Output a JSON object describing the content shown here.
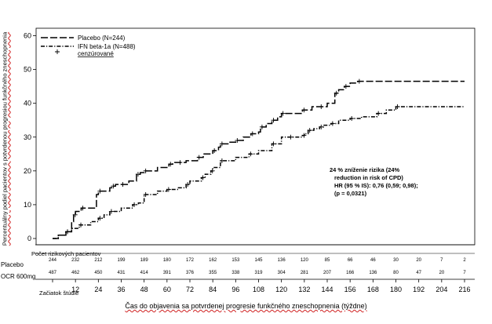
{
  "chart_data": {
    "type": "line",
    "subtype": "kaplan-meier step curves",
    "ylabel": "Percentuálny podiel pacientov s potvrdenou progresiou funkčného zneschopnenia",
    "xlabel": "Čas do objavenia sa potvrdenej progresie funkčného zneschopnenia (týždne)",
    "ylim": [
      0,
      60
    ],
    "yticks": [
      0,
      10,
      20,
      30,
      40,
      50,
      60
    ],
    "xlim": [
      0,
      216
    ],
    "xticks": [
      0,
      12,
      24,
      36,
      48,
      60,
      72,
      84,
      96,
      108,
      120,
      132,
      144,
      156,
      168,
      180,
      192,
      204,
      216
    ],
    "xtick_labels": [
      "Začiatok štúdie",
      "12",
      "24",
      "36",
      "48",
      "60",
      "72",
      "84",
      "96",
      "108",
      "120",
      "132",
      "144",
      "156",
      "168",
      "180",
      "192",
      "204",
      "216"
    ],
    "grid": false,
    "legend_position": "top-left",
    "legend_marker_label": "cenzúrované",
    "series": [
      {
        "name": "Placebo (N=244)",
        "style": "long-dash",
        "x": [
          0,
          3,
          7,
          10,
          11,
          12,
          15,
          23,
          24,
          30,
          31,
          33,
          36,
          40,
          44,
          46,
          48,
          55,
          61,
          63,
          66,
          70,
          76,
          79,
          84,
          87,
          88,
          93,
          96,
          100,
          104,
          108,
          109,
          112,
          115,
          118,
          120,
          124,
          131,
          136,
          140,
          144,
          148,
          150,
          153,
          156,
          160,
          216
        ],
        "y": [
          0,
          1,
          2,
          5,
          7,
          8,
          9,
          13,
          14,
          15,
          15.5,
          16,
          16,
          17,
          19,
          19.5,
          20,
          21,
          22,
          22.5,
          22.5,
          23,
          24,
          25,
          26,
          27,
          28,
          28.5,
          29,
          30,
          31,
          31.5,
          33,
          34,
          35,
          36,
          37,
          37,
          38,
          39,
          39,
          40,
          43,
          44,
          45,
          46,
          46.5,
          46.5
        ]
      },
      {
        "name": "IFN beta-1a (N=488)",
        "style": "dash-dot",
        "x": [
          0,
          3,
          7,
          10,
          14,
          20,
          24,
          27,
          30,
          36,
          42,
          45,
          48,
          55,
          60,
          66,
          70,
          72,
          78,
          80,
          83,
          84,
          88,
          96,
          103,
          108,
          115,
          120,
          124,
          128,
          131,
          132,
          134,
          137,
          140,
          142,
          146,
          150,
          156,
          162,
          170,
          175,
          180,
          216
        ],
        "y": [
          0,
          1,
          2,
          3,
          4,
          5,
          6,
          7,
          8,
          9,
          10,
          10.5,
          13,
          14,
          14.5,
          15,
          16,
          17,
          18,
          19,
          20,
          21,
          23,
          24,
          25,
          26,
          28,
          30,
          30,
          30,
          30.5,
          31,
          32,
          32.5,
          33,
          33.5,
          34,
          35,
          35.5,
          36,
          37,
          38,
          39,
          39
        ]
      }
    ],
    "annotation": [
      "24 % zníženie rizika (24%",
      "reduction in risk of CPD)",
      "HR (95 % IS): 0,76 (0,59; 0,98);",
      "(p = 0,0321)"
    ],
    "risk_table": {
      "title": "Počet rizikových pacientov",
      "rows": [
        {
          "label": "Placebo",
          "values": [
            "244",
            "232",
            "212",
            "199",
            "189",
            "180",
            "172",
            "162",
            "153",
            "145",
            "136",
            "120",
            "85",
            "66",
            "46",
            "30",
            "20",
            "7",
            "2"
          ]
        },
        {
          "label": "OCR 600mg",
          "values": [
            "487",
            "462",
            "450",
            "431",
            "414",
            "391",
            "376",
            "355",
            "338",
            "319",
            "304",
            "281",
            "207",
            "166",
            "136",
            "80",
            "47",
            "20",
            "7"
          ]
        }
      ]
    }
  }
}
